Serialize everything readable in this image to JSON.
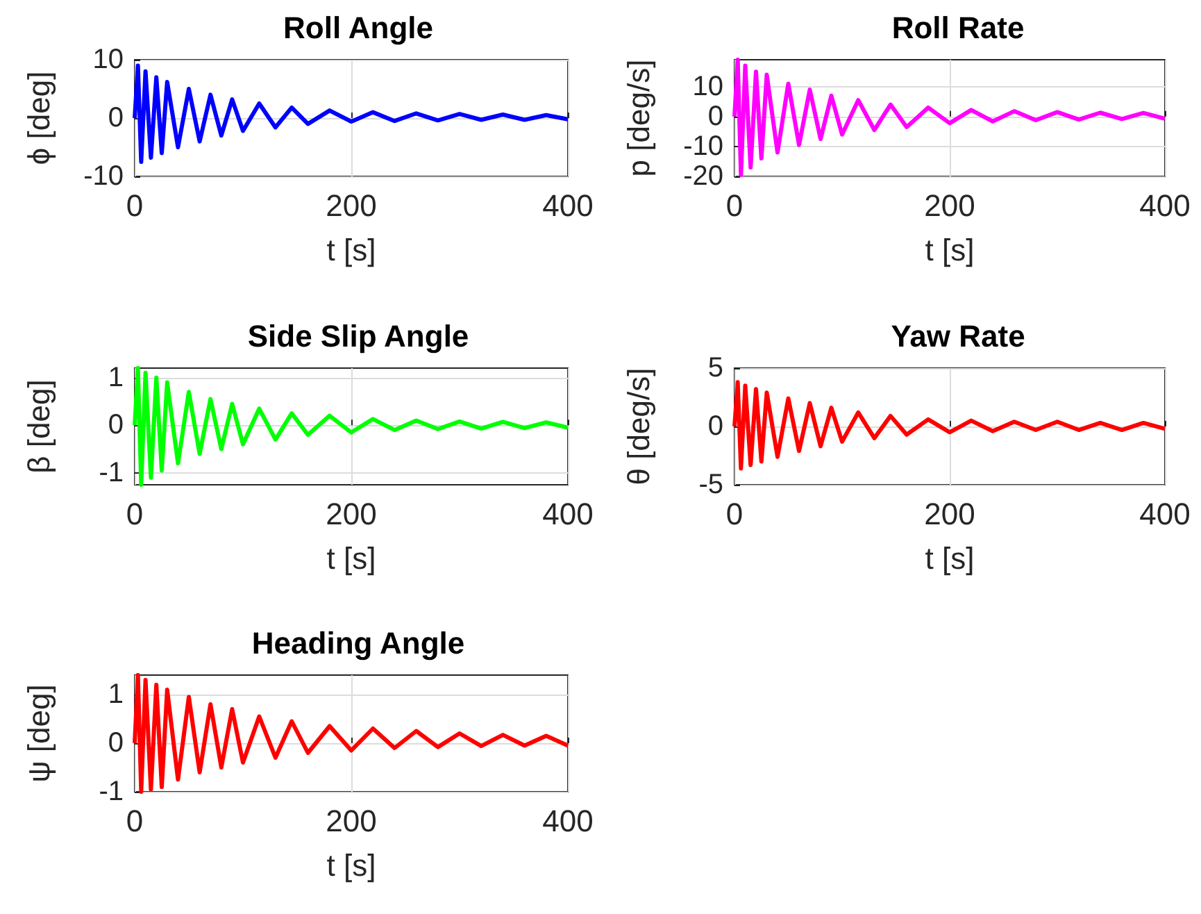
{
  "chart_data": [
    {
      "type": "line",
      "title": "Roll Angle",
      "xlabel": "t [s]",
      "ylabel": "ϕ [deg]",
      "x": [
        0,
        3,
        6,
        10,
        15,
        20,
        25,
        30,
        40,
        50,
        60,
        70,
        80,
        90,
        100,
        115,
        130,
        145,
        160,
        180,
        200,
        220,
        240,
        260,
        280,
        300,
        320,
        340,
        360,
        380,
        400
      ],
      "xlim": [
        0,
        400
      ],
      "xticks": [
        0,
        200,
        400
      ],
      "ylim": [
        -10,
        10
      ],
      "yticks": [
        -10,
        0,
        10
      ],
      "grid": true,
      "series": [
        {
          "color": "#0000ff",
          "values": [
            0,
            9,
            -7.5,
            8,
            -6.8,
            7,
            -6,
            6.2,
            -5,
            5,
            -4,
            4,
            -3,
            3.2,
            -2.2,
            2.5,
            -1.6,
            1.8,
            -1,
            1.3,
            -0.6,
            1,
            -0.5,
            0.8,
            -0.4,
            0.7,
            -0.3,
            0.6,
            -0.3,
            0.5,
            -0.2
          ]
        }
      ]
    },
    {
      "type": "line",
      "title": "Roll Rate",
      "xlabel": "t [s]",
      "ylabel": "p [deg/s]",
      "x": [
        0,
        3,
        6,
        10,
        15,
        20,
        25,
        30,
        40,
        50,
        60,
        70,
        80,
        90,
        100,
        115,
        130,
        145,
        160,
        180,
        200,
        220,
        240,
        260,
        280,
        300,
        320,
        340,
        360,
        380,
        400
      ],
      "xlim": [
        0,
        400
      ],
      "xticks": [
        0,
        200,
        400
      ],
      "ylim": [
        -20,
        19
      ],
      "yticks": [
        -20,
        -10,
        0,
        10
      ],
      "grid": true,
      "series": [
        {
          "color": "#ff00ff",
          "values": [
            0,
            19,
            -19.5,
            17,
            -17,
            15,
            -14,
            14,
            -12,
            11,
            -9.5,
            9,
            -7.5,
            7,
            -6,
            5.5,
            -4.5,
            4,
            -3.5,
            3,
            -2.2,
            2.2,
            -1.6,
            1.8,
            -1.2,
            1.5,
            -1,
            1.3,
            -0.8,
            1.2,
            -0.7
          ]
        }
      ]
    },
    {
      "type": "line",
      "title": "Side Slip Angle",
      "xlabel": "t [s]",
      "ylabel": "β [deg]",
      "x": [
        0,
        3,
        6,
        10,
        15,
        20,
        25,
        30,
        40,
        50,
        60,
        70,
        80,
        90,
        100,
        115,
        130,
        145,
        160,
        180,
        200,
        220,
        240,
        260,
        280,
        300,
        320,
        340,
        360,
        380,
        400
      ],
      "xlim": [
        0,
        400
      ],
      "xticks": [
        0,
        200,
        400
      ],
      "ylim": [
        -1.25,
        1.2
      ],
      "yticks": [
        -1,
        0,
        1
      ],
      "grid": true,
      "series": [
        {
          "color": "#00ff00",
          "values": [
            0,
            1.2,
            -1.25,
            1.1,
            -1.1,
            1,
            -0.95,
            0.9,
            -0.8,
            0.7,
            -0.6,
            0.55,
            -0.5,
            0.45,
            -0.4,
            0.35,
            -0.3,
            0.25,
            -0.2,
            0.2,
            -0.15,
            0.13,
            -0.1,
            0.1,
            -0.08,
            0.08,
            -0.07,
            0.07,
            -0.06,
            0.06,
            -0.05
          ]
        }
      ]
    },
    {
      "type": "line",
      "title": "Yaw Rate",
      "xlabel": "t [s]",
      "ylabel": "θ [deg/s]",
      "x": [
        0,
        3,
        6,
        10,
        15,
        20,
        25,
        30,
        40,
        50,
        60,
        70,
        80,
        90,
        100,
        115,
        130,
        145,
        160,
        180,
        200,
        220,
        240,
        260,
        280,
        300,
        320,
        340,
        360,
        380,
        400
      ],
      "xlim": [
        0,
        400
      ],
      "xticks": [
        0,
        200,
        400
      ],
      "ylim": [
        -5,
        5
      ],
      "yticks": [
        -5,
        0,
        5
      ],
      "grid": true,
      "series": [
        {
          "color": "#ff0000",
          "values": [
            0,
            3.8,
            -3.6,
            3.5,
            -3.3,
            3.2,
            -3,
            2.9,
            -2.6,
            2.4,
            -2.1,
            2,
            -1.7,
            1.6,
            -1.3,
            1.2,
            -1,
            0.9,
            -0.7,
            0.6,
            -0.5,
            0.5,
            -0.4,
            0.4,
            -0.3,
            0.4,
            -0.3,
            0.3,
            -0.3,
            0.3,
            -0.2
          ]
        }
      ]
    },
    {
      "type": "line",
      "title": "Heading Angle",
      "xlabel": "t [s]",
      "ylabel": "ψ [deg]",
      "x": [
        0,
        3,
        6,
        10,
        15,
        20,
        25,
        30,
        40,
        50,
        60,
        70,
        80,
        90,
        100,
        115,
        130,
        145,
        160,
        180,
        200,
        220,
        240,
        260,
        280,
        300,
        320,
        340,
        360,
        380,
        400
      ],
      "xlim": [
        0,
        400
      ],
      "xticks": [
        0,
        200,
        400
      ],
      "ylim": [
        -1,
        1.4
      ],
      "yticks": [
        -1,
        0,
        1
      ],
      "grid": true,
      "series": [
        {
          "color": "#ff0000",
          "values": [
            0,
            1.4,
            -1,
            1.3,
            -0.95,
            1.2,
            -0.9,
            1.1,
            -0.75,
            0.95,
            -0.6,
            0.8,
            -0.5,
            0.7,
            -0.4,
            0.55,
            -0.3,
            0.45,
            -0.2,
            0.35,
            -0.15,
            0.3,
            -0.1,
            0.25,
            -0.08,
            0.2,
            -0.06,
            0.17,
            -0.05,
            0.15,
            -0.05
          ]
        }
      ]
    }
  ]
}
